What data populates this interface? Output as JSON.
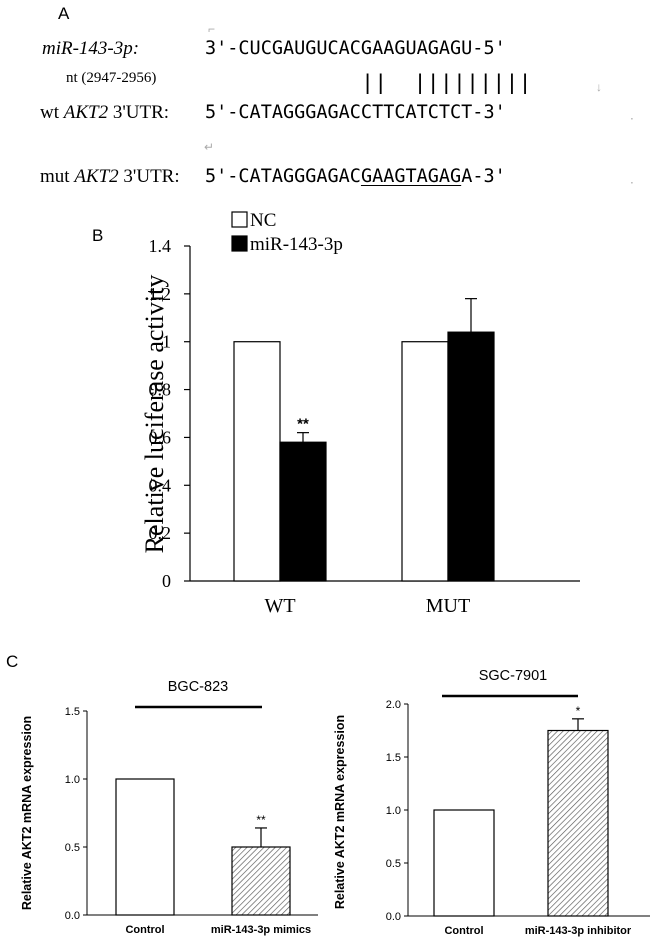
{
  "panel_a": {
    "letter": "A",
    "mirna_label": "miR-143-3p:",
    "mirna_seq": "3'-CUCGAUGUCACGAAGUAGAGU-5'",
    "nt_label": "nt (2947-2956)",
    "pairing": "||  |||||||||",
    "wt_prefix": "wt ",
    "wt_gene": "AKT2",
    "wt_suffix": " 3'UTR:",
    "wt_seq": "5'-CATAGGGAGACCTTCATCTCT-3'",
    "mut_prefix": "mut ",
    "mut_gene": "AKT2",
    "mut_suffix": " 3'UTR:",
    "mut_seq_start": "5'-CATAGGGAGAC",
    "mut_seq_mutated": "GAAGTAGAG",
    "mut_seq_end": "A-3'",
    "edit_marks": {
      "mark1": "⌐",
      "mark2": "↓",
      "mark3": "↵",
      "mark4": "⋅"
    }
  },
  "panel_b": {
    "letter": "B"
  },
  "panel_c": {
    "letter": "C"
  },
  "chart_data": [
    {
      "panel": "B",
      "type": "bar",
      "categories": [
        "WT",
        "MUT"
      ],
      "series": [
        {
          "name": "NC",
          "values": [
            1.0,
            1.0
          ],
          "errors": [
            0,
            0
          ],
          "fill": "#ffffff"
        },
        {
          "name": "miR-143-3p",
          "values": [
            0.58,
            1.04
          ],
          "errors": [
            0.04,
            0.14
          ],
          "fill": "#000000"
        }
      ],
      "significance": [
        "**",
        ""
      ],
      "ylabel": "Relative luciferase activity",
      "ylim": [
        0,
        1.4
      ],
      "yticks": [
        0,
        0.2,
        0.4,
        0.6,
        0.8,
        1,
        1.2,
        1.4
      ],
      "ytick_labels": [
        "0",
        "0.2",
        "0.4",
        "0.6",
        "0.8",
        "1",
        "1.2",
        "1.4"
      ],
      "legend": "top-left",
      "grid": false
    },
    {
      "panel": "C-left",
      "type": "bar",
      "title": "BGC-823",
      "categories": [
        "Control",
        "miR-143-3p mimics"
      ],
      "values": [
        1.0,
        0.5
      ],
      "errors": [
        0,
        0.14
      ],
      "significance": [
        "",
        "**"
      ],
      "ylabel": "Relative AKT2 mRNA expression",
      "ylim": [
        0,
        1.5
      ],
      "yticks": [
        0,
        0.5,
        1.0,
        1.5
      ],
      "ytick_labels": [
        "0.0",
        "0.5",
        "1.0",
        "1.5"
      ],
      "fills": [
        "white",
        "hatched"
      ],
      "grid": false
    },
    {
      "panel": "C-right",
      "type": "bar",
      "title": "SGC-7901",
      "categories": [
        "Control",
        "miR-143-3p inhibitor"
      ],
      "values": [
        1.0,
        1.75
      ],
      "errors": [
        0,
        0.11
      ],
      "significance": [
        "",
        "*"
      ],
      "ylabel": "Relative AKT2 mRNA expression",
      "ylim": [
        0,
        2.0
      ],
      "yticks": [
        0,
        0.5,
        1.0,
        1.5,
        2.0
      ],
      "ytick_labels": [
        "0.0",
        "0.5",
        "1.0",
        "1.5",
        "2.0"
      ],
      "fills": [
        "white",
        "hatched"
      ],
      "grid": false
    }
  ]
}
